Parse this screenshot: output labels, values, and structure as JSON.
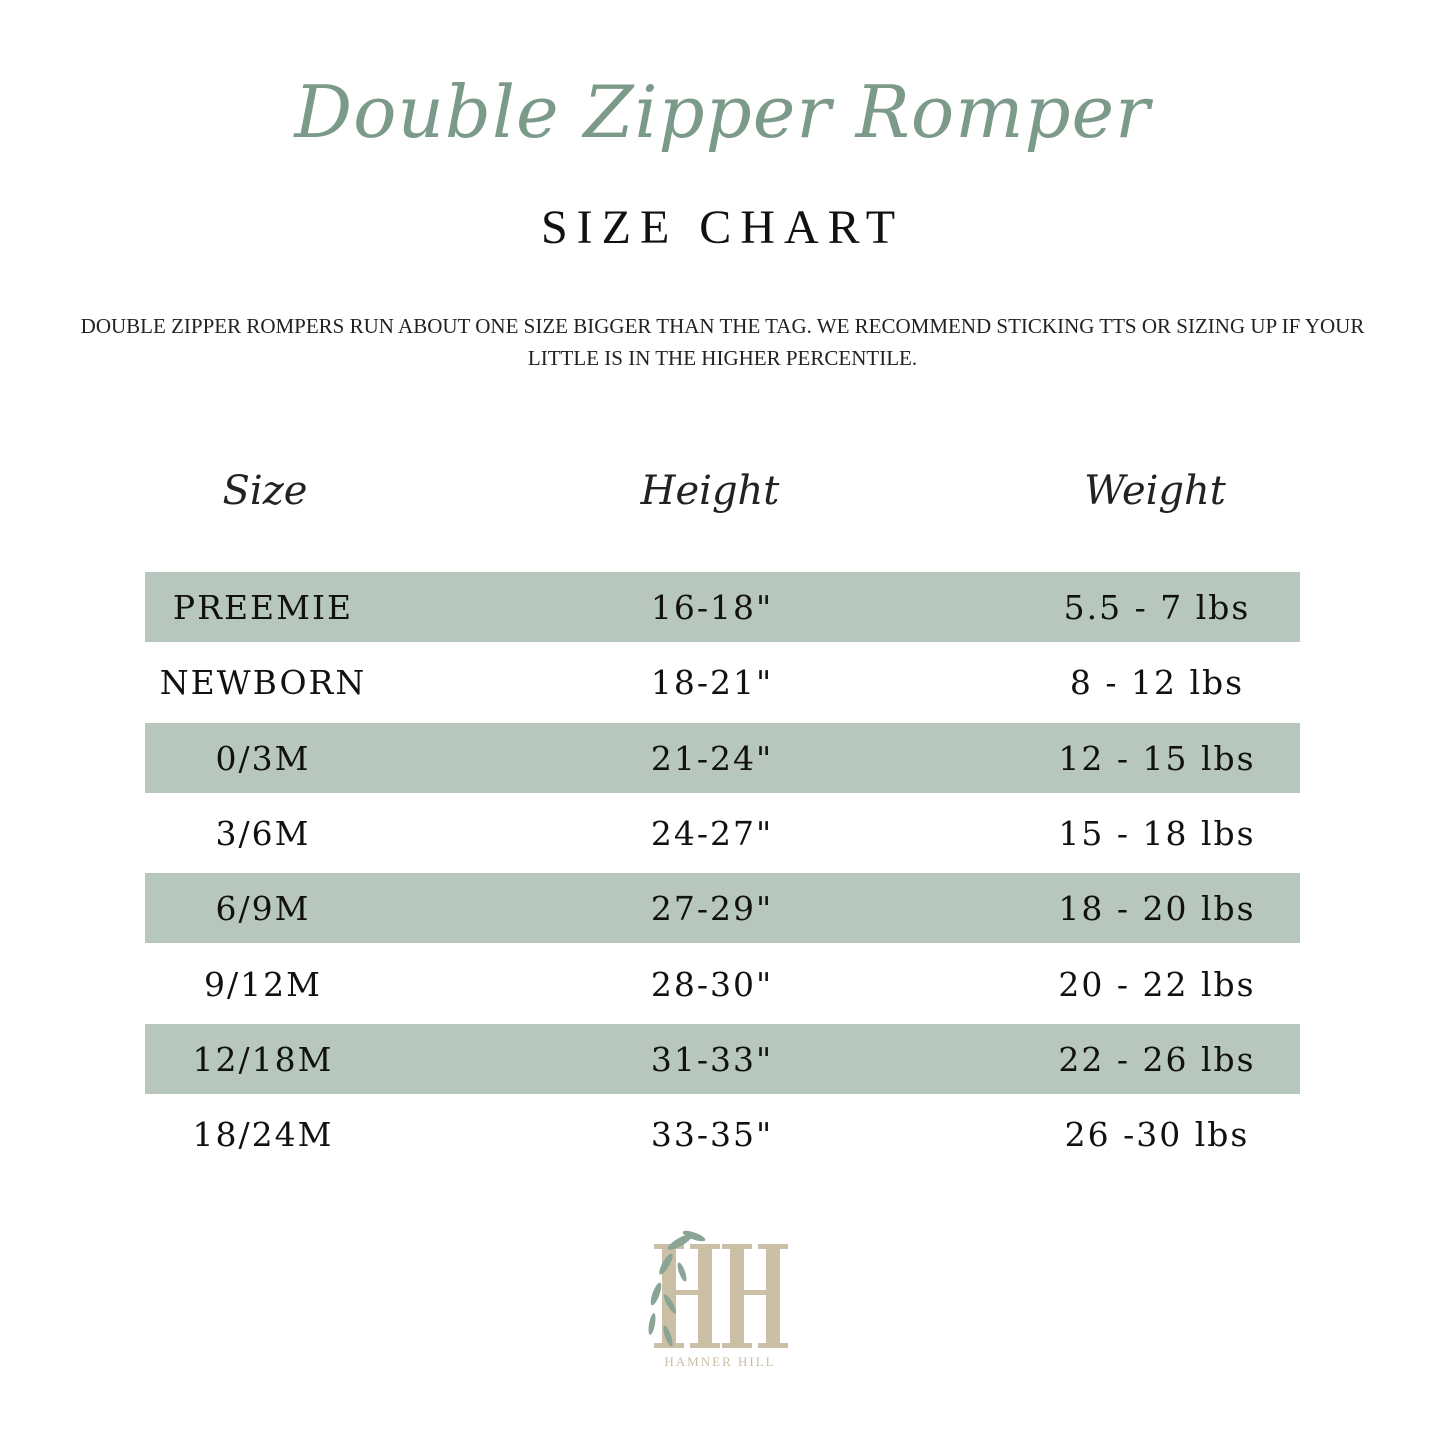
{
  "title": "Double Zipper Romper",
  "subtitle": "SIZE CHART",
  "note": "DOUBLE ZIPPER ROMPERS RUN ABOUT ONE SIZE BIGGER THAN THE TAG. WE RECOMMEND STICKING TTS OR SIZING UP IF YOUR LITTLE IS IN THE HIGHER PERCENTILE.",
  "headers": [
    "Size",
    "Height",
    "Weight"
  ],
  "rows": [
    [
      "PREEMIE",
      "16-18\"",
      "5.5 - 7 lbs"
    ],
    [
      "NEWBORN",
      "18-21\"",
      "8 - 12 lbs"
    ],
    [
      "0/3M",
      "21-24\"",
      "12 - 15 lbs"
    ],
    [
      "3/6M",
      "24-27\"",
      "15 - 18 lbs"
    ],
    [
      "6/9M",
      "27-29\"",
      "18 - 20 lbs"
    ],
    [
      "9/12M",
      "28-30\"",
      "20 - 22 lbs"
    ],
    [
      "12/18M",
      "31-33\"",
      "22 - 26 lbs"
    ],
    [
      "18/24M",
      "33-35\"",
      "26 -30 lbs"
    ]
  ],
  "logo": {
    "monogram": "HH",
    "text": "HAMNER HILL"
  },
  "colors": {
    "accent": "#7c9a8a",
    "band": "#b8c7bd",
    "logo": "#c9bca4"
  }
}
